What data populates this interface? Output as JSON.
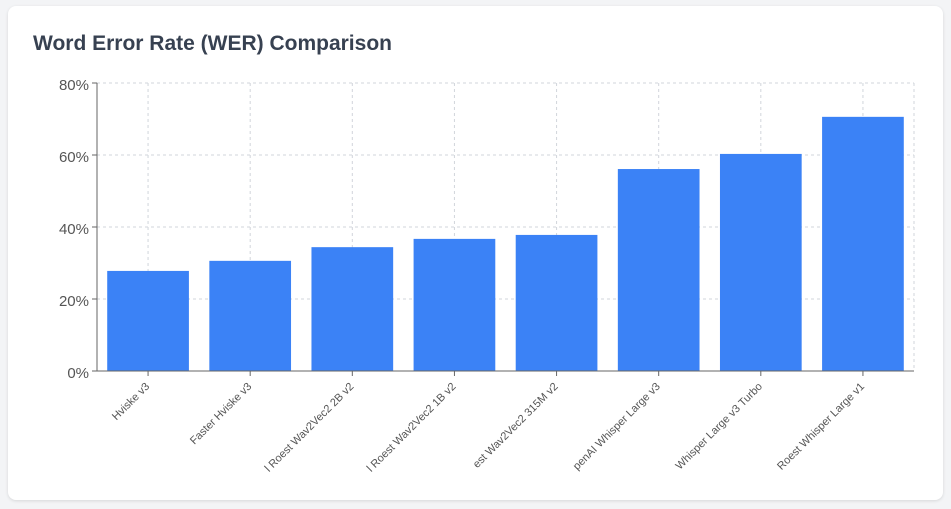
{
  "chart_data": {
    "type": "bar",
    "title": "Word Error Rate (WER) Comparison",
    "categories": [
      "Hviske v3",
      "Faster Hviske v3",
      "l Roest Wav2Vec2 2B v2",
      "l Roest Wav2Vec2 1B v2",
      "est Wav2Vec2 315M v2",
      "penAI Whisper Large v3",
      "Whisper Large v3 Turbo",
      "Roest Whisper Large v1"
    ],
    "values": [
      27.8,
      30.6,
      34.4,
      36.7,
      37.8,
      56.1,
      60.3,
      70.6
    ],
    "color": "#3b82f6",
    "ylim": [
      0,
      80
    ],
    "yticks": [
      {
        "value": 0,
        "label": "0%"
      },
      {
        "value": 20,
        "label": "20%"
      },
      {
        "value": 40,
        "label": "40%"
      },
      {
        "value": 60,
        "label": "60%"
      },
      {
        "value": 80,
        "label": "80%"
      }
    ],
    "grid": true
  }
}
